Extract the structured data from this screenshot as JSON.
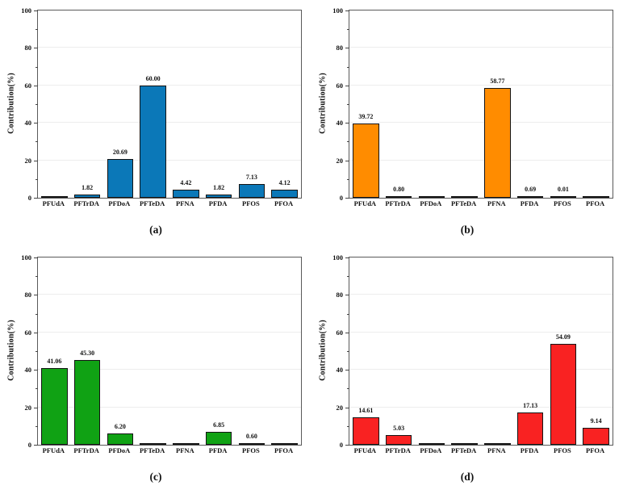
{
  "figure": {
    "background": "#ffffff",
    "text_color": "#111111",
    "grid_color": "#ededed",
    "spine_color": "#5a5a5a",
    "bar_edge_color": "#141414"
  },
  "chart_data": [
    {
      "type": "bar",
      "panel": "(a)",
      "categories": [
        "PFUdA",
        "PFTrDA",
        "PFDoA",
        "PFTeDA",
        "PFNA",
        "PFDA",
        "PFOS",
        "PFOA"
      ],
      "values": [
        0.2,
        1.82,
        20.69,
        60.0,
        4.42,
        1.82,
        7.13,
        4.12
      ],
      "bar_labels": [
        "",
        "1.82",
        "20.69",
        "60.00",
        "4.42",
        "1.82",
        "7.13",
        "4.12"
      ],
      "ylabel": "Contribution(%)",
      "xlabel": "",
      "ylim": [
        0,
        100
      ],
      "yticks": [
        0,
        20,
        40,
        60,
        80,
        100
      ],
      "minor_tick_step": 10,
      "grid": true,
      "legend": false,
      "bar_color": "#0b78b8"
    },
    {
      "type": "bar",
      "panel": "(b)",
      "categories": [
        "PFUdA",
        "PFTrDA",
        "PFDoA",
        "PFTeDA",
        "PFNA",
        "PFDA",
        "PFOS",
        "PFOA"
      ],
      "values": [
        39.72,
        0.8,
        0.2,
        0.2,
        58.77,
        0.69,
        0.01,
        0.2
      ],
      "bar_labels": [
        "39.72",
        "0.80",
        "",
        "",
        "58.77",
        "0.69",
        "0.01",
        ""
      ],
      "ylabel": "Contribution(%)",
      "xlabel": "",
      "ylim": [
        0,
        100
      ],
      "yticks": [
        0,
        20,
        40,
        60,
        80,
        100
      ],
      "minor_tick_step": 10,
      "grid": true,
      "legend": false,
      "bar_color": "#ff8c00"
    },
    {
      "type": "bar",
      "panel": "(c)",
      "categories": [
        "PFUdA",
        "PFTrDA",
        "PFDoA",
        "PFTeDA",
        "PFNA",
        "PFDA",
        "PFOS",
        "PFOA"
      ],
      "values": [
        41.06,
        45.3,
        6.2,
        0.2,
        0.2,
        6.85,
        0.6,
        0.2
      ],
      "bar_labels": [
        "41.06",
        "45.30",
        "6.20",
        "",
        "",
        "6.85",
        "0.60",
        ""
      ],
      "ylabel": "Contribution(%)",
      "xlabel": "",
      "ylim": [
        0,
        100
      ],
      "yticks": [
        0,
        20,
        40,
        60,
        80,
        100
      ],
      "minor_tick_step": 10,
      "grid": true,
      "legend": false,
      "bar_color": "#10a214"
    },
    {
      "type": "bar",
      "panel": "(d)",
      "categories": [
        "PFUdA",
        "PFTrDA",
        "PFDoA",
        "PFTeDA",
        "PFNA",
        "PFDA",
        "PFOS",
        "PFOA"
      ],
      "values": [
        14.61,
        5.03,
        0.2,
        0.2,
        0.2,
        17.13,
        54.09,
        9.14
      ],
      "bar_labels": [
        "14.61",
        "5.03",
        "",
        "",
        "",
        "17.13",
        "54.09",
        "9.14"
      ],
      "ylabel": "Contribution(%)",
      "xlabel": "",
      "ylim": [
        0,
        100
      ],
      "yticks": [
        0,
        20,
        40,
        60,
        80,
        100
      ],
      "minor_tick_step": 10,
      "grid": true,
      "legend": false,
      "bar_color": "#f92222"
    }
  ]
}
